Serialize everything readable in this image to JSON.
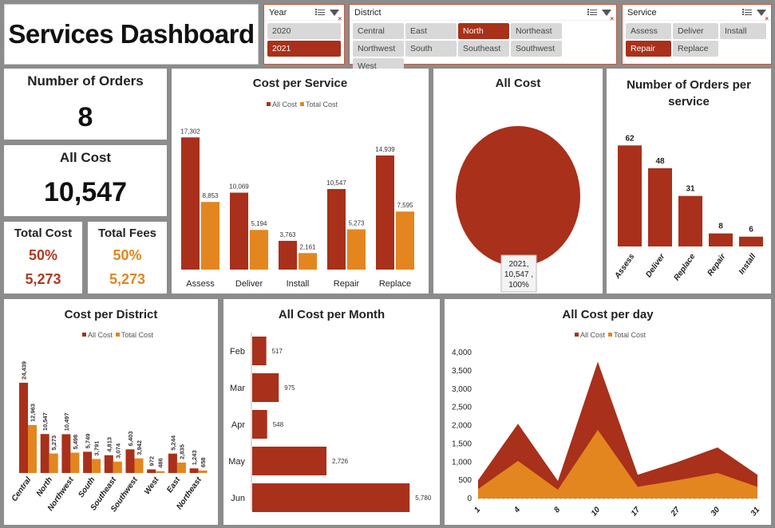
{
  "header": {
    "title": "Services Dashboard"
  },
  "slicers": {
    "year": {
      "label": "Year",
      "items": [
        {
          "label": "2020",
          "selected": false
        },
        {
          "label": "2021",
          "selected": true
        }
      ]
    },
    "district": {
      "label": "District",
      "items": [
        {
          "label": "Central",
          "selected": false
        },
        {
          "label": "East",
          "selected": false
        },
        {
          "label": "North",
          "selected": true
        },
        {
          "label": "Northeast",
          "selected": false
        },
        {
          "label": "Northwest",
          "selected": false
        },
        {
          "label": "South",
          "selected": false
        },
        {
          "label": "Southeast",
          "selected": false
        },
        {
          "label": "Southwest",
          "selected": false
        },
        {
          "label": "West",
          "selected": false
        }
      ]
    },
    "service": {
      "label": "Service",
      "items": [
        {
          "label": "Assess",
          "selected": false
        },
        {
          "label": "Deliver",
          "selected": false
        },
        {
          "label": "Install",
          "selected": false
        },
        {
          "label": "Repair",
          "selected": true
        },
        {
          "label": "Replace",
          "selected": false
        }
      ]
    }
  },
  "kpis": {
    "orders": {
      "label": "Number of Orders",
      "value": "8"
    },
    "all_cost": {
      "label": "All Cost",
      "value": "10,547"
    },
    "total_cost": {
      "label": "Total Cost",
      "pct": "50%",
      "value": "5,273"
    },
    "total_fees": {
      "label": "Total Fees",
      "pct": "50%",
      "value": "5,273"
    }
  },
  "colors": {
    "all_cost": "#a9301a",
    "total_cost": "#e3861f",
    "kpi_cost": "#b03a22",
    "kpi_fees": "#e3861f"
  },
  "chart_data": [
    {
      "id": "cost_per_service",
      "type": "bar",
      "title": "Cost per Service",
      "categories": [
        "Assess",
        "Deliver",
        "Install",
        "Repair",
        "Replace"
      ],
      "series": [
        {
          "name": "All Cost",
          "values": [
            17302,
            10069,
            3763,
            10547,
            14939
          ],
          "labels": [
            "17,302",
            "10,069",
            "3,763",
            "10,547",
            "14,939"
          ]
        },
        {
          "name": "Total Cost",
          "values": [
            8853,
            5194,
            2161,
            5273,
            7595
          ],
          "labels": [
            "8,853",
            "5,194",
            "2,161",
            "5,273",
            "7,595"
          ]
        }
      ],
      "legend": "top",
      "ylim": [
        0,
        19000
      ]
    },
    {
      "id": "all_cost_pie",
      "type": "pie",
      "title": "All Cost",
      "slices": [
        {
          "label": "2021",
          "value": 10547,
          "value_label": "10,547",
          "pct": "100%"
        }
      ]
    },
    {
      "id": "orders_per_service",
      "type": "bar",
      "title": "Number of Orders per service",
      "categories": [
        "Assess",
        "Deliver",
        "Replace",
        "Repair",
        "Install"
      ],
      "values": [
        62,
        48,
        31,
        8,
        6
      ],
      "ylim": [
        0,
        70
      ]
    },
    {
      "id": "cost_per_district",
      "type": "bar",
      "title": "Cost per District",
      "categories": [
        "Central",
        "North",
        "Northwest",
        "South",
        "Southeast",
        "Southwest",
        "West",
        "East",
        "Northeast"
      ],
      "series": [
        {
          "name": "All Cost",
          "values": [
            24439,
            10547,
            10497,
            5749,
            4813,
            6403,
            972,
            5244,
            1243
          ],
          "labels": [
            "24,439",
            "10,547",
            "10,497",
            "5,749",
            "4,813",
            "6,403",
            "972",
            "5,244",
            "1,243"
          ]
        },
        {
          "name": "Total Cost",
          "values": [
            12963,
            5273,
            5498,
            3791,
            3074,
            3942,
            486,
            2835,
            658
          ],
          "labels": [
            "12,963",
            "5,273",
            "5,498",
            "3,791",
            "3,074",
            "3,942",
            "486",
            "2,835",
            "658"
          ]
        }
      ],
      "legend": "top",
      "ylim": [
        0,
        27000
      ]
    },
    {
      "id": "all_cost_per_month",
      "type": "bar",
      "orientation": "horizontal",
      "title": "All Cost per Month",
      "categories": [
        "Feb",
        "Mar",
        "Apr",
        "May",
        "Jun"
      ],
      "values": [
        517,
        975,
        548,
        2726,
        5780
      ],
      "labels": [
        "517",
        "975",
        "548",
        "2,726",
        "5,780"
      ],
      "xlim": [
        0,
        6300
      ]
    },
    {
      "id": "all_cost_per_day",
      "type": "area",
      "title": "All Cost per day",
      "x": [
        "1",
        "4",
        "8",
        "10",
        "17",
        "27",
        "30",
        "31"
      ],
      "series": [
        {
          "name": "All Cost",
          "values": [
            500,
            2050,
            480,
            3750,
            650,
            1000,
            1400,
            650
          ]
        },
        {
          "name": "Total Cost",
          "values": [
            260,
            1030,
            240,
            1880,
            320,
            500,
            700,
            320
          ]
        }
      ],
      "yticks": [
        "0",
        "500",
        "1,000",
        "1,500",
        "2,000",
        "2,500",
        "3,000",
        "3,500",
        "4,000"
      ],
      "ylim": [
        0,
        4000
      ],
      "legend": "top"
    }
  ]
}
